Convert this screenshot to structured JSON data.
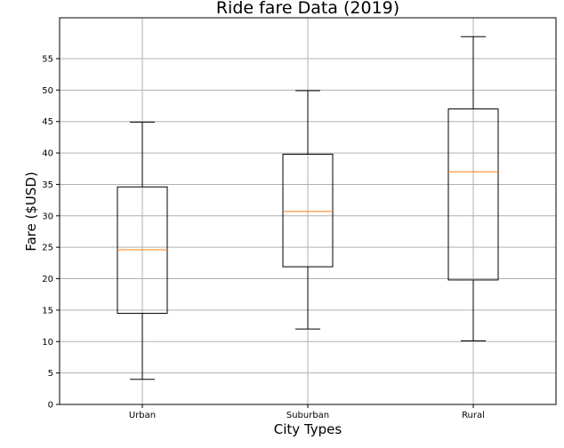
{
  "chart_data": {
    "type": "box",
    "title": "Ride fare Data (2019)",
    "xlabel": "City Types",
    "ylabel": "Fare ($USD)",
    "ylim": [
      0,
      61.5
    ],
    "yticks": [
      0,
      5,
      10,
      15,
      20,
      25,
      30,
      35,
      40,
      45,
      50,
      55
    ],
    "grid": true,
    "categories": [
      "Urban",
      "Suburban",
      "Rural"
    ],
    "boxes": [
      {
        "category": "Urban",
        "whisker_low": 4.0,
        "q1": 14.5,
        "median": 24.6,
        "q3": 34.6,
        "whisker_high": 44.9
      },
      {
        "category": "Suburban",
        "whisker_low": 12.0,
        "q1": 21.9,
        "median": 30.7,
        "q3": 39.8,
        "whisker_high": 49.9
      },
      {
        "category": "Rural",
        "whisker_low": 10.1,
        "q1": 19.8,
        "median": 37.0,
        "q3": 47.0,
        "whisker_high": 58.5
      }
    ],
    "colors": {
      "box": "#000000",
      "median": "#ff7f0e",
      "grid": "#b0b0b0"
    }
  }
}
